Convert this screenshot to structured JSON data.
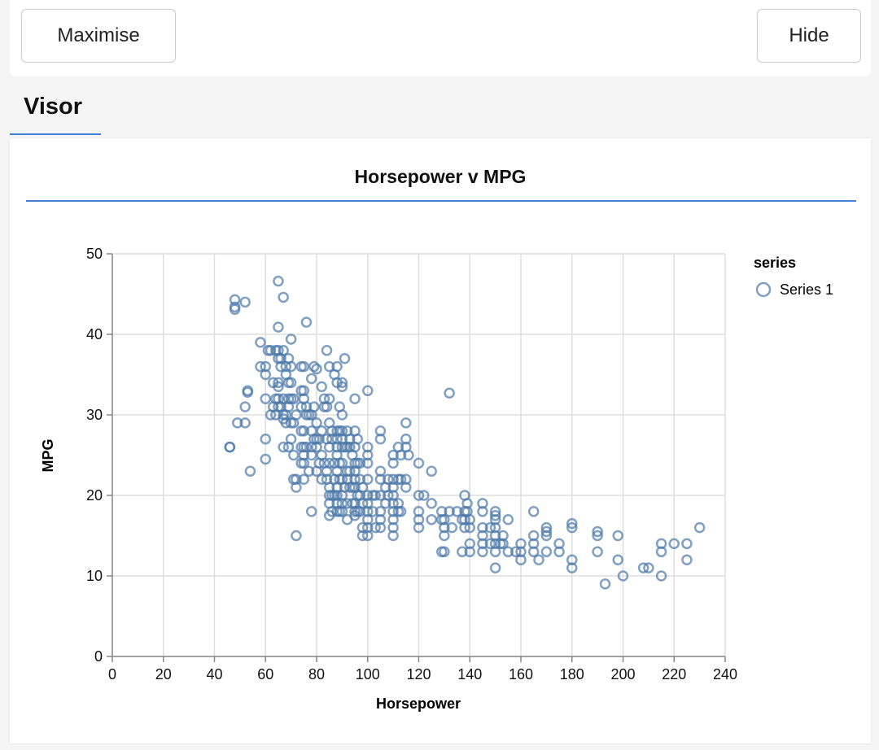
{
  "toolbar": {
    "maximise_label": "Maximise",
    "hide_label": "Hide"
  },
  "tabs": [
    {
      "label": "Visor"
    }
  ],
  "chart_data": {
    "type": "scatter",
    "title": "Horsepower v MPG",
    "xlabel": "Horsepower",
    "ylabel": "MPG",
    "xlim": [
      0,
      240
    ],
    "ylim": [
      0,
      50
    ],
    "xticks": [
      "0",
      "20",
      "40",
      "60",
      "80",
      "100",
      "120",
      "140",
      "160",
      "180",
      "200",
      "220",
      "240"
    ],
    "yticks": [
      "0",
      "10",
      "20",
      "30",
      "40",
      "50"
    ],
    "grid": true,
    "legend": {
      "title": "series",
      "position": "right"
    },
    "marker_color": "#4c78a8",
    "series": [
      {
        "name": "Series 1",
        "points": [
          [
            46,
            26
          ],
          [
            46,
            26
          ],
          [
            48,
            43.1
          ],
          [
            48,
            43.4
          ],
          [
            48,
            44.3
          ],
          [
            52,
            44
          ],
          [
            53,
            33
          ],
          [
            53,
            32.8
          ],
          [
            52,
            31
          ],
          [
            49,
            29
          ],
          [
            52,
            29
          ],
          [
            54,
            23
          ],
          [
            58,
            39
          ],
          [
            58,
            36
          ],
          [
            60,
            24.5
          ],
          [
            60,
            27
          ],
          [
            60,
            32
          ],
          [
            60,
            36
          ],
          [
            60,
            35
          ],
          [
            61,
            38
          ],
          [
            62,
            38
          ],
          [
            62,
            30
          ],
          [
            63,
            34
          ],
          [
            63,
            31
          ],
          [
            64,
            38
          ],
          [
            64,
            32
          ],
          [
            64,
            30
          ],
          [
            65,
            46.6
          ],
          [
            65,
            40.9
          ],
          [
            65,
            38
          ],
          [
            65,
            37
          ],
          [
            65,
            31
          ],
          [
            65,
            32
          ],
          [
            65,
            33.5
          ],
          [
            65,
            34
          ],
          [
            66,
            36
          ],
          [
            66,
            37
          ],
          [
            66,
            31
          ],
          [
            67,
            44.6
          ],
          [
            67,
            38
          ],
          [
            67,
            32
          ],
          [
            67,
            30
          ],
          [
            67,
            26
          ],
          [
            67,
            29.5
          ],
          [
            68,
            36
          ],
          [
            68,
            35
          ],
          [
            68,
            30
          ],
          [
            68,
            29
          ],
          [
            69,
            34
          ],
          [
            69,
            32
          ],
          [
            69,
            31
          ],
          [
            69,
            26
          ],
          [
            69,
            37
          ],
          [
            70,
            39.4
          ],
          [
            70,
            36
          ],
          [
            70,
            32
          ],
          [
            70,
            34
          ],
          [
            70,
            29
          ],
          [
            70,
            27
          ],
          [
            71,
            32
          ],
          [
            71,
            29
          ],
          [
            71,
            25
          ],
          [
            71,
            22
          ],
          [
            72,
            15
          ],
          [
            72,
            21
          ],
          [
            72,
            22
          ],
          [
            72,
            30
          ],
          [
            74,
            36
          ],
          [
            74,
            33
          ],
          [
            74,
            26
          ],
          [
            74,
            24
          ],
          [
            74,
            28
          ],
          [
            74,
            31
          ],
          [
            75,
            36
          ],
          [
            75,
            33
          ],
          [
            75,
            32
          ],
          [
            75,
            25
          ],
          [
            75,
            26
          ],
          [
            75,
            24
          ],
          [
            75,
            22
          ],
          [
            75,
            28
          ],
          [
            76,
            41.5
          ],
          [
            76,
            31
          ],
          [
            76,
            30
          ],
          [
            76,
            26
          ],
          [
            77,
            30
          ],
          [
            77,
            23
          ],
          [
            78,
            18
          ],
          [
            78,
            34.5
          ],
          [
            78,
            30
          ],
          [
            78,
            28
          ],
          [
            78,
            26
          ],
          [
            78,
            25
          ],
          [
            79,
            36
          ],
          [
            79,
            31
          ],
          [
            79,
            27
          ],
          [
            80,
            35.7
          ],
          [
            80,
            29
          ],
          [
            80,
            27
          ],
          [
            80,
            26
          ],
          [
            80,
            23
          ],
          [
            81,
            27
          ],
          [
            81,
            24
          ],
          [
            82,
            33.5
          ],
          [
            82,
            28
          ],
          [
            82,
            25
          ],
          [
            82,
            22
          ],
          [
            83,
            32
          ],
          [
            83,
            31
          ],
          [
            83,
            24
          ],
          [
            84,
            38
          ],
          [
            84,
            31
          ],
          [
            84,
            27
          ],
          [
            84,
            22
          ],
          [
            84,
            23
          ],
          [
            85,
            36
          ],
          [
            85,
            32
          ],
          [
            85,
            29
          ],
          [
            85,
            26
          ],
          [
            85,
            24
          ],
          [
            85,
            20
          ],
          [
            85,
            19
          ],
          [
            85,
            17.5
          ],
          [
            85,
            21
          ],
          [
            86,
            28
          ],
          [
            86,
            27
          ],
          [
            86,
            20
          ],
          [
            86,
            18
          ],
          [
            87,
            35
          ],
          [
            87,
            24
          ],
          [
            87,
            22
          ],
          [
            87,
            20
          ],
          [
            88,
            36
          ],
          [
            88,
            34
          ],
          [
            88,
            28
          ],
          [
            88,
            27
          ],
          [
            88,
            26
          ],
          [
            88,
            25
          ],
          [
            88,
            23
          ],
          [
            88,
            21
          ],
          [
            88,
            20
          ],
          [
            88,
            19
          ],
          [
            88,
            18
          ],
          [
            89,
            31
          ],
          [
            89,
            28
          ],
          [
            89,
            24
          ],
          [
            89,
            22
          ],
          [
            89,
            18
          ],
          [
            90,
            34
          ],
          [
            90,
            33.5
          ],
          [
            90,
            30
          ],
          [
            90,
            28
          ],
          [
            90,
            27
          ],
          [
            90,
            26
          ],
          [
            90,
            24
          ],
          [
            90,
            22
          ],
          [
            90,
            20
          ],
          [
            90,
            19
          ],
          [
            90,
            18
          ],
          [
            91,
            37
          ],
          [
            91,
            26
          ],
          [
            91,
            21
          ],
          [
            92,
            28
          ],
          [
            92,
            26
          ],
          [
            92,
            23
          ],
          [
            92,
            22
          ],
          [
            92,
            19
          ],
          [
            92,
            17
          ],
          [
            93,
            27
          ],
          [
            93,
            26
          ],
          [
            93,
            23
          ],
          [
            93,
            21
          ],
          [
            94,
            25
          ],
          [
            94,
            21
          ],
          [
            94,
            19
          ],
          [
            95,
            32
          ],
          [
            95,
            28
          ],
          [
            95,
            26
          ],
          [
            95,
            24
          ],
          [
            95,
            23
          ],
          [
            95,
            22
          ],
          [
            95,
            21
          ],
          [
            95,
            19
          ],
          [
            95,
            18
          ],
          [
            95,
            17.5
          ],
          [
            96,
            27
          ],
          [
            96,
            24
          ],
          [
            96,
            20
          ],
          [
            96,
            18
          ],
          [
            97,
            24
          ],
          [
            97,
            22
          ],
          [
            97,
            20
          ],
          [
            97,
            18
          ],
          [
            98,
            21
          ],
          [
            98,
            19
          ],
          [
            98,
            16
          ],
          [
            98,
            15
          ],
          [
            100,
            33
          ],
          [
            100,
            26
          ],
          [
            100,
            25
          ],
          [
            100,
            24
          ],
          [
            100,
            22
          ],
          [
            100,
            20
          ],
          [
            100,
            19
          ],
          [
            100,
            18
          ],
          [
            100,
            17
          ],
          [
            100,
            16
          ],
          [
            100,
            15
          ],
          [
            102,
            20
          ],
          [
            102,
            18
          ],
          [
            103,
            20
          ],
          [
            103,
            16
          ],
          [
            105,
            28
          ],
          [
            105,
            27
          ],
          [
            105,
            23
          ],
          [
            105,
            22
          ],
          [
            105,
            20
          ],
          [
            105,
            18
          ],
          [
            105,
            17
          ],
          [
            105,
            16
          ],
          [
            107,
            21
          ],
          [
            107,
            19
          ],
          [
            108,
            22
          ],
          [
            108,
            20
          ],
          [
            110,
            25
          ],
          [
            110,
            24
          ],
          [
            110,
            22
          ],
          [
            110,
            21
          ],
          [
            110,
            20
          ],
          [
            110,
            19
          ],
          [
            110,
            18
          ],
          [
            110,
            17
          ],
          [
            110,
            16
          ],
          [
            110,
            15
          ],
          [
            112,
            26
          ],
          [
            112,
            22
          ],
          [
            112,
            19
          ],
          [
            112,
            18
          ],
          [
            113,
            25
          ],
          [
            113,
            22
          ],
          [
            113,
            18
          ],
          [
            115,
            29
          ],
          [
            115,
            27
          ],
          [
            115,
            26
          ],
          [
            115,
            22
          ],
          [
            115,
            21
          ],
          [
            116,
            25
          ],
          [
            120,
            24
          ],
          [
            120,
            20
          ],
          [
            120,
            18
          ],
          [
            120,
            17
          ],
          [
            120,
            16
          ],
          [
            122,
            20
          ],
          [
            125,
            23
          ],
          [
            125,
            19
          ],
          [
            125,
            17
          ],
          [
            129,
            18
          ],
          [
            129,
            17
          ],
          [
            129,
            13
          ],
          [
            130,
            17
          ],
          [
            130,
            16
          ],
          [
            130,
            15
          ],
          [
            130,
            13
          ],
          [
            132,
            32.7
          ],
          [
            132,
            18
          ],
          [
            133,
            16
          ],
          [
            135,
            18
          ],
          [
            137,
            17
          ],
          [
            137,
            13
          ],
          [
            138,
            20
          ],
          [
            138,
            18
          ],
          [
            138,
            17
          ],
          [
            138,
            16
          ],
          [
            139,
            19
          ],
          [
            139,
            18
          ],
          [
            140,
            17
          ],
          [
            140,
            16
          ],
          [
            140,
            14
          ],
          [
            140,
            13
          ],
          [
            145,
            19
          ],
          [
            145,
            18
          ],
          [
            145,
            16
          ],
          [
            145,
            15
          ],
          [
            145,
            14
          ],
          [
            145,
            13
          ],
          [
            148,
            16
          ],
          [
            148,
            14
          ],
          [
            150,
            18
          ],
          [
            150,
            17.5
          ],
          [
            150,
            17
          ],
          [
            150,
            16
          ],
          [
            150,
            15
          ],
          [
            150,
            14
          ],
          [
            150,
            13
          ],
          [
            150,
            11
          ],
          [
            152,
            14
          ],
          [
            153,
            15
          ],
          [
            153,
            14
          ],
          [
            155,
            17
          ],
          [
            155,
            13
          ],
          [
            158,
            13
          ],
          [
            160,
            14
          ],
          [
            160,
            13
          ],
          [
            160,
            12
          ],
          [
            165,
            18
          ],
          [
            165,
            15
          ],
          [
            165,
            14
          ],
          [
            165,
            13
          ],
          [
            167,
            12
          ],
          [
            170,
            16
          ],
          [
            170,
            15.5
          ],
          [
            170,
            15
          ],
          [
            170,
            13
          ],
          [
            175,
            14
          ],
          [
            175,
            13
          ],
          [
            180,
            16.5
          ],
          [
            180,
            16
          ],
          [
            180,
            12
          ],
          [
            180,
            11
          ],
          [
            190,
            15.5
          ],
          [
            190,
            15
          ],
          [
            190,
            13
          ],
          [
            193,
            9
          ],
          [
            198,
            15
          ],
          [
            198,
            12
          ],
          [
            200,
            10
          ],
          [
            208,
            11
          ],
          [
            210,
            11
          ],
          [
            215,
            14
          ],
          [
            215,
            13
          ],
          [
            215,
            10
          ],
          [
            220,
            14
          ],
          [
            225,
            14
          ],
          [
            225,
            12
          ],
          [
            230,
            16
          ]
        ]
      }
    ]
  }
}
